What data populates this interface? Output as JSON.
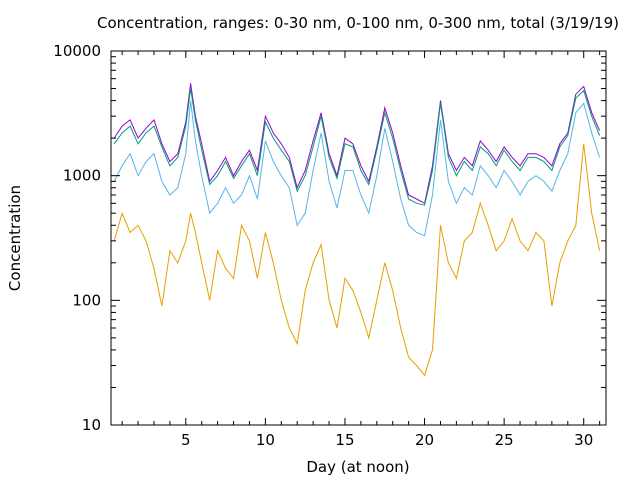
{
  "chart_data": {
    "type": "line",
    "title": "Concentration, ranges: 0-30 nm, 0-100 nm, 0-300 nm, total (3/19/19)",
    "xlabel": "Day (at noon)",
    "ylabel": "Concentration",
    "xlim": [
      0.3,
      31.4
    ],
    "ylim": [
      10,
      10000
    ],
    "yscale": "log",
    "grid": false,
    "legend": "none",
    "x_ticks": [
      5,
      10,
      15,
      20,
      25,
      30
    ],
    "x_tick_labels": [
      "5",
      "10",
      "15",
      "20",
      "25",
      "30"
    ],
    "y_ticks": [
      10,
      100,
      1000,
      10000
    ],
    "y_tick_labels": [
      "10",
      "100",
      "1000",
      "10000"
    ],
    "series": [
      {
        "color": "#9400d3",
        "x": [
          0.5,
          1,
          1.5,
          2,
          2.5,
          3,
          3.5,
          4,
          4.5,
          5,
          5.3,
          5.6,
          6,
          6.5,
          7,
          7.5,
          8,
          8.5,
          9,
          9.5,
          10,
          10.5,
          11,
          11.5,
          12,
          12.5,
          13,
          13.5,
          14,
          14.5,
          15,
          15.5,
          16,
          16.5,
          17,
          17.5,
          18,
          18.5,
          19,
          19.5,
          20,
          20.5,
          21,
          21.5,
          22,
          22.5,
          23,
          23.5,
          24,
          24.5,
          25,
          25.5,
          26,
          26.5,
          27,
          27.5,
          28,
          28.5,
          29,
          29.5,
          30,
          30.5,
          31
        ],
        "y": [
          2000,
          2500,
          2800,
          2000,
          2400,
          2800,
          1800,
          1300,
          1500,
          2700,
          5500,
          3000,
          1800,
          900,
          1100,
          1400,
          1000,
          1300,
          1600,
          1100,
          3000,
          2200,
          1800,
          1400,
          800,
          1100,
          1900,
          3200,
          1500,
          1000,
          2000,
          1800,
          1200,
          900,
          1700,
          3500,
          2200,
          1200,
          700,
          650,
          600,
          1200,
          4000,
          1500,
          1100,
          1400,
          1200,
          1900,
          1600,
          1300,
          1700,
          1400,
          1200,
          1500,
          1500,
          1400,
          1200,
          1800,
          2200,
          4500,
          5200,
          3200,
          2300
        ]
      },
      {
        "color": "#009e73",
        "x": [
          0.5,
          1,
          1.5,
          2,
          2.5,
          3,
          3.5,
          4,
          4.5,
          5,
          5.3,
          5.6,
          6,
          6.5,
          7,
          7.5,
          8,
          8.5,
          9,
          9.5,
          10,
          10.5,
          11,
          11.5,
          12,
          12.5,
          13,
          13.5,
          14,
          14.5,
          15,
          15.5,
          16,
          16.5,
          17,
          17.5,
          18,
          18.5,
          19,
          19.5,
          20,
          20.5,
          21,
          21.5,
          22,
          22.5,
          23,
          23.5,
          24,
          24.5,
          25,
          25.5,
          26,
          26.5,
          27,
          27.5,
          28,
          28.5,
          29,
          29.5,
          30,
          30.5,
          31
        ],
        "y": [
          1800,
          2200,
          2500,
          1800,
          2200,
          2500,
          1700,
          1200,
          1400,
          2500,
          5000,
          2800,
          1600,
          850,
          1000,
          1300,
          950,
          1200,
          1500,
          1000,
          2700,
          2000,
          1600,
          1300,
          750,
          1000,
          1700,
          3000,
          1400,
          950,
          1800,
          1700,
          1100,
          850,
          1600,
          3200,
          2000,
          1100,
          650,
          600,
          580,
          1100,
          3800,
          1400,
          1000,
          1300,
          1100,
          1700,
          1500,
          1200,
          1600,
          1300,
          1100,
          1400,
          1400,
          1300,
          1100,
          1700,
          2100,
          4200,
          4800,
          3000,
          2100
        ]
      },
      {
        "color": "#56b4e9",
        "x": [
          0.5,
          1,
          1.5,
          2,
          2.5,
          3,
          3.5,
          4,
          4.5,
          5,
          5.3,
          5.6,
          6,
          6.5,
          7,
          7.5,
          8,
          8.5,
          9,
          9.5,
          10,
          10.5,
          11,
          11.5,
          12,
          12.5,
          13,
          13.5,
          14,
          14.5,
          15,
          15.5,
          16,
          16.5,
          17,
          17.5,
          18,
          18.5,
          19,
          19.5,
          20,
          20.5,
          21,
          21.5,
          22,
          22.5,
          23,
          23.5,
          24,
          24.5,
          25,
          25.5,
          26,
          26.5,
          27,
          27.5,
          28,
          28.5,
          29,
          29.5,
          30,
          30.5,
          31
        ],
        "y": [
          900,
          1200,
          1500,
          1000,
          1300,
          1500,
          900,
          700,
          800,
          1500,
          4000,
          1900,
          1000,
          500,
          600,
          800,
          600,
          700,
          1000,
          650,
          1900,
          1300,
          1000,
          800,
          400,
          500,
          1100,
          2200,
          900,
          550,
          1100,
          1100,
          700,
          500,
          1000,
          2400,
          1300,
          650,
          400,
          350,
          330,
          700,
          2800,
          900,
          600,
          800,
          700,
          1200,
          1000,
          800,
          1100,
          900,
          700,
          900,
          1000,
          900,
          750,
          1100,
          1500,
          3200,
          3800,
          2200,
          1400
        ]
      },
      {
        "color": "#e69f00",
        "x": [
          0.5,
          1,
          1.5,
          2,
          2.5,
          3,
          3.5,
          4,
          4.5,
          5,
          5.3,
          5.6,
          6,
          6.5,
          7,
          7.5,
          8,
          8.5,
          9,
          9.5,
          10,
          10.5,
          11,
          11.5,
          12,
          12.5,
          13,
          13.5,
          14,
          14.5,
          15,
          15.5,
          16,
          16.5,
          17,
          17.5,
          18,
          18.5,
          19,
          19.5,
          20,
          20.5,
          21,
          21.5,
          22,
          22.5,
          23,
          23.5,
          24,
          24.5,
          25,
          25.5,
          26,
          26.5,
          27,
          27.5,
          28,
          28.5,
          29,
          29.5,
          30,
          30.5,
          31
        ],
        "y": [
          300,
          500,
          350,
          400,
          300,
          180,
          90,
          250,
          200,
          300,
          500,
          350,
          200,
          100,
          250,
          180,
          150,
          400,
          300,
          150,
          350,
          200,
          100,
          60,
          45,
          120,
          200,
          280,
          100,
          60,
          150,
          120,
          80,
          50,
          100,
          200,
          120,
          60,
          35,
          30,
          25,
          40,
          400,
          200,
          150,
          300,
          350,
          600,
          400,
          250,
          300,
          450,
          300,
          250,
          350,
          300,
          90,
          200,
          300,
          400,
          1800,
          500,
          250
        ]
      }
    ]
  }
}
